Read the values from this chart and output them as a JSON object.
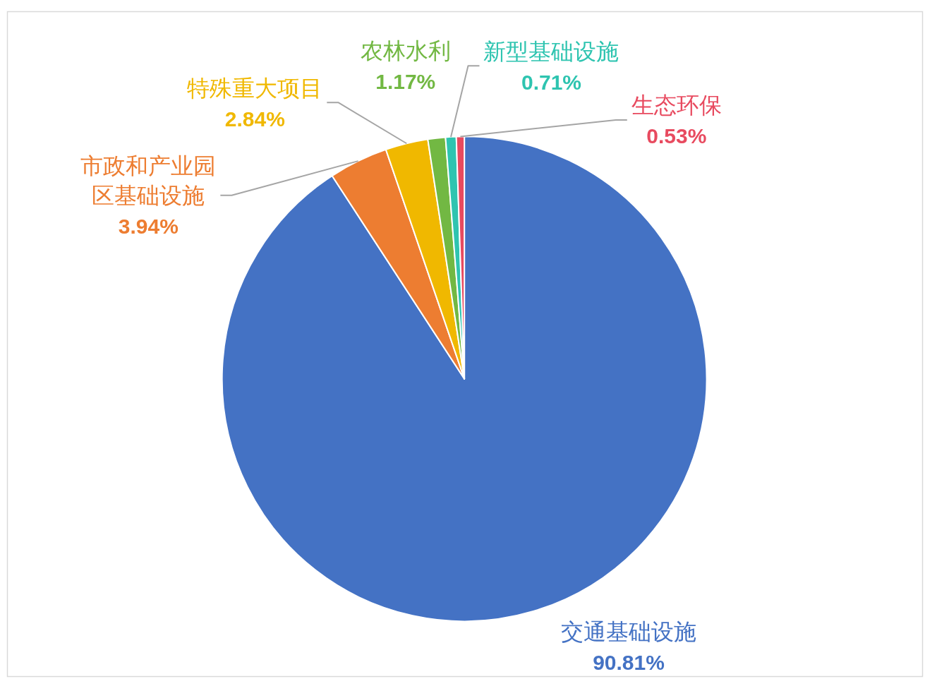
{
  "chart_data": {
    "type": "pie",
    "categories": [
      "交通基础设施",
      "市政和产业园区基础设施",
      "特殊重大项目",
      "农林水利",
      "新型基础设施",
      "生态环保"
    ],
    "values": [
      90.81,
      3.94,
      2.84,
      1.17,
      0.71,
      0.53
    ],
    "colors": [
      "#4472c4",
      "#ed7d31",
      "#f0b800",
      "#72b843",
      "#2ec4b0",
      "#e84a5f"
    ],
    "value_labels": [
      "90.81%",
      "3.94%",
      "2.84%",
      "1.17%",
      "0.71%",
      "0.53%"
    ]
  }
}
